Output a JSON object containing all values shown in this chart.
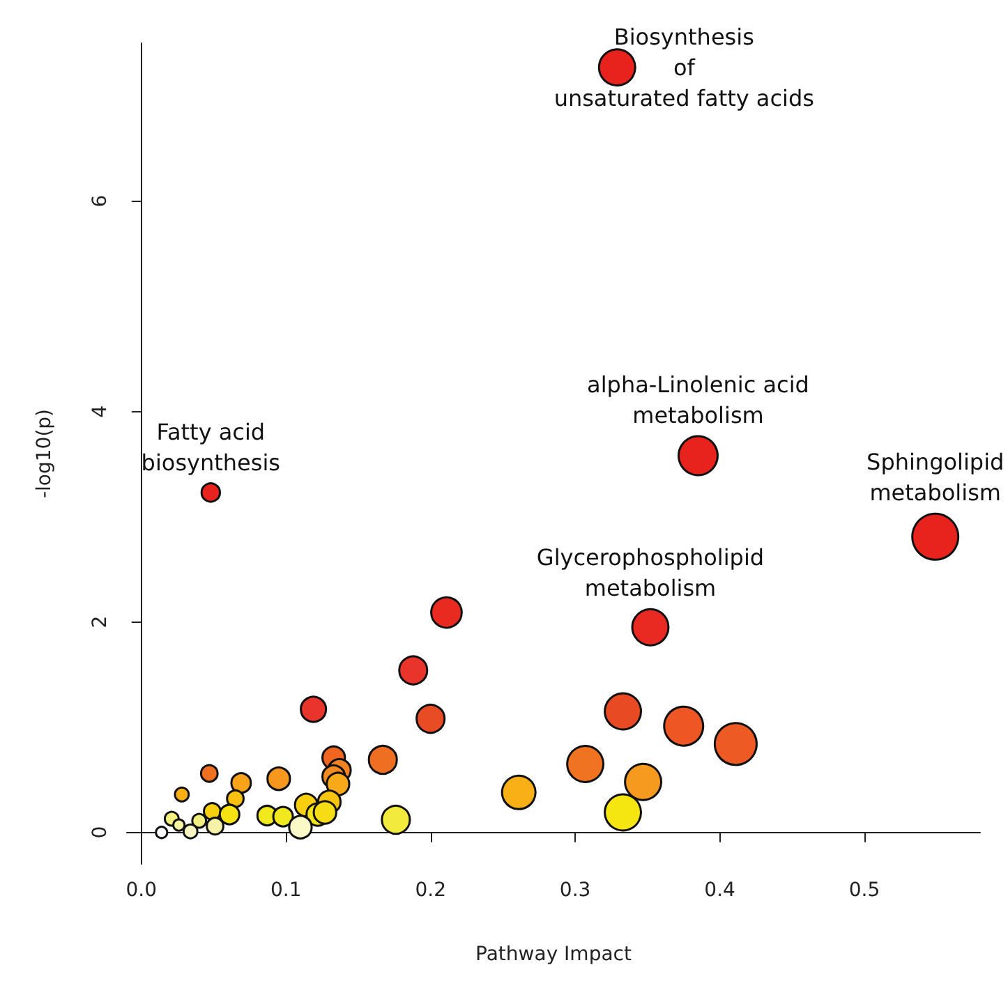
{
  "chart_data": {
    "type": "bubble",
    "xlabel": "Pathway Impact",
    "ylabel": "-log10(p)",
    "xlim": [
      -0.01,
      0.58
    ],
    "xticks": [
      {
        "value": 0,
        "label": "0.0"
      },
      0.1,
      0.2,
      0.3,
      0.4,
      0.5
    ],
    "ylim": [
      -0.3,
      7.5
    ],
    "yticks": [
      0,
      2,
      4,
      6
    ],
    "grid": false,
    "marker": "circle",
    "x": [
      0.329,
      0.385,
      0.549,
      0.048,
      0.211,
      0.352,
      0.188,
      0.2,
      0.333,
      0.375,
      0.411,
      0.167,
      0.307,
      0.347,
      0.261,
      0.333,
      0.176,
      0.119,
      0.047,
      0.069,
      0.095,
      0.133,
      0.137,
      0.133,
      0.136,
      0.028,
      0.065,
      0.13,
      0.114,
      0.049,
      0.061,
      0.087,
      0.098,
      0.122,
      0.127,
      0.021,
      0.04,
      0.026,
      0.051,
      0.034,
      0.11,
      0.014
    ],
    "values": [
      7.27,
      3.58,
      2.81,
      3.23,
      2.09,
      1.95,
      1.54,
      1.08,
      1.15,
      1.01,
      0.84,
      0.69,
      0.65,
      0.48,
      0.38,
      0.19,
      0.12,
      1.17,
      0.56,
      0.47,
      0.51,
      0.71,
      0.59,
      0.53,
      0.46,
      0.36,
      0.32,
      0.29,
      0.26,
      0.2,
      0.17,
      0.16,
      0.15,
      0.17,
      0.19,
      0.13,
      0.11,
      0.07,
      0.06,
      0.01,
      0.05,
      0.0
    ],
    "sizes": [
      0.62,
      0.72,
      1.0,
      0.16,
      0.44,
      0.62,
      0.37,
      0.37,
      0.62,
      0.72,
      0.83,
      0.37,
      0.62,
      0.62,
      0.53,
      0.62,
      0.37,
      0.3,
      0.13,
      0.18,
      0.24,
      0.24,
      0.24,
      0.24,
      0.24,
      0.09,
      0.13,
      0.24,
      0.24,
      0.13,
      0.18,
      0.18,
      0.18,
      0.24,
      0.24,
      0.09,
      0.09,
      0.06,
      0.13,
      0.09,
      0.24,
      0.06
    ],
    "colors": [
      "#e8231e",
      "#e8231e",
      "#e8231e",
      "#e8231e",
      "#e82a20",
      "#e82a22",
      "#e8342a",
      "#e84c25",
      "#e84b24",
      "#ee5624",
      "#ee5a24",
      "#ef6f22",
      "#f07322",
      "#f5991f",
      "#f8b016",
      "#f5e612",
      "#f2ea3c",
      "#e8342a",
      "#f07022",
      "#f8a31a",
      "#f7971e",
      "#f0651f",
      "#f28222",
      "#f28a22",
      "#f8a91a",
      "#f9b016",
      "#f8c010",
      "#f8c410",
      "#f8d010",
      "#f8d010",
      "#f6e312",
      "#f2e81e",
      "#f2e81e",
      "#f4e41a",
      "#f6dc14",
      "#f4f080",
      "#f0ee80",
      "#f6f4a0",
      "#f6f2a8",
      "#f8f6c0",
      "#fafac8",
      "#ffffff"
    ],
    "annotations": [
      {
        "text": "Biosynthesis\nof\nunsaturated fatty acids",
        "x": 0.329,
        "y": 7.27
      },
      {
        "text": "alpha-Linolenic acid\nmetabolism",
        "x": 0.385,
        "y": 3.58
      },
      {
        "text": "Sphingolipid\nmetabolism",
        "x": 0.549,
        "y": 2.81
      },
      {
        "text": "Fatty acid\nbiosynthesis",
        "x": 0.048,
        "y": 3.23
      },
      {
        "text": "Glycerophospholipid\nmetabolism",
        "x": 0.352,
        "y": 1.95
      }
    ]
  }
}
